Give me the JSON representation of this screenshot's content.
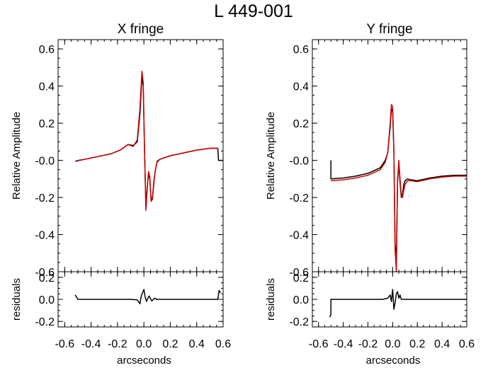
{
  "figure": {
    "title": "L 449-001"
  },
  "chart_data": [
    {
      "type": "line",
      "panel": "main",
      "title": "X fringe",
      "xlabel": "",
      "ylabel": "Relative Amplitude",
      "xlim": [
        -0.65,
        0.6
      ],
      "ylim": [
        -0.6,
        0.65
      ],
      "yticks": [
        0.6,
        0.4,
        0.2,
        0.0,
        -0.2,
        -0.4,
        -0.6
      ],
      "ytick_labels": [
        "0.6",
        "0.4",
        "0.2",
        "-0.0",
        "-0.2",
        "-0.4",
        "-0.6"
      ],
      "grid": false,
      "series": [
        {
          "color": "#000000",
          "x": [
            -0.52,
            -0.45,
            -0.35,
            -0.25,
            -0.18,
            -0.12,
            -0.08,
            -0.05,
            -0.03,
            -0.015,
            -0.005,
            0.005,
            0.015,
            0.025,
            0.035,
            0.045,
            0.055,
            0.065,
            0.075,
            0.085,
            0.1,
            0.12,
            0.2,
            0.3,
            0.4,
            0.5,
            0.56,
            0.565,
            0.6
          ],
          "y": [
            -0.005,
            0.005,
            0.02,
            0.035,
            0.055,
            0.085,
            0.08,
            0.1,
            0.25,
            0.45,
            0.4,
            0.05,
            -0.25,
            -0.15,
            -0.07,
            -0.1,
            -0.22,
            -0.2,
            -0.12,
            -0.06,
            -0.005,
            0.005,
            0.025,
            0.04,
            0.055,
            0.065,
            0.065,
            0.0,
            0.0
          ]
        },
        {
          "color": "#cc0000",
          "x": [
            -0.5,
            -0.45,
            -0.35,
            -0.25,
            -0.18,
            -0.12,
            -0.08,
            -0.05,
            -0.03,
            -0.015,
            -0.005,
            0.005,
            0.015,
            0.025,
            0.035,
            0.045,
            0.055,
            0.065,
            0.075,
            0.085,
            0.1,
            0.12,
            0.2,
            0.3,
            0.4,
            0.5,
            0.56
          ],
          "y": [
            0.0,
            0.005,
            0.02,
            0.035,
            0.055,
            0.085,
            0.075,
            0.11,
            0.28,
            0.48,
            0.42,
            0.05,
            -0.27,
            -0.16,
            -0.06,
            -0.09,
            -0.22,
            -0.21,
            -0.13,
            -0.06,
            -0.01,
            0.005,
            0.025,
            0.04,
            0.055,
            0.065,
            0.065
          ]
        }
      ]
    },
    {
      "type": "line",
      "panel": "residuals",
      "title": "",
      "xlabel": "arcseconds",
      "ylabel": "residuals",
      "xlim": [
        -0.65,
        0.6
      ],
      "ylim": [
        -0.25,
        0.25
      ],
      "xticks": [
        -0.6,
        -0.4,
        -0.2,
        0.0,
        0.2,
        0.4,
        0.6
      ],
      "xtick_labels": [
        "-0.6",
        "-0.4",
        "-0.2",
        "0.0",
        "0.2",
        "0.4",
        "0.6"
      ],
      "yticks": [
        0.2,
        0.0,
        -0.2
      ],
      "ytick_labels": [
        "0.2",
        "0.0",
        "-0.2"
      ],
      "grid": false,
      "series": [
        {
          "color": "#000000",
          "x": [
            -0.52,
            -0.5,
            -0.3,
            -0.1,
            -0.05,
            -0.03,
            -0.02,
            -0.01,
            0.0,
            0.01,
            0.02,
            0.03,
            0.04,
            0.05,
            0.06,
            0.08,
            0.1,
            0.3,
            0.5,
            0.56,
            0.57,
            0.58
          ],
          "y": [
            0.04,
            0.0,
            0.0,
            0.0,
            -0.005,
            -0.04,
            0.03,
            0.06,
            0.09,
            0.02,
            -0.02,
            0.01,
            0.03,
            0.005,
            -0.015,
            0.01,
            0.0,
            0.0,
            0.0,
            0.0,
            0.08,
            0.06
          ]
        }
      ]
    },
    {
      "type": "line",
      "panel": "main",
      "title": "Y fringe",
      "xlabel": "",
      "ylabel": "Relative Amplitude",
      "xlim": [
        -0.65,
        0.6
      ],
      "ylim": [
        -0.6,
        0.65
      ],
      "yticks": [
        0.6,
        0.4,
        0.2,
        0.0,
        -0.2,
        -0.4,
        -0.6
      ],
      "ytick_labels": [
        "0.6",
        "0.4",
        "0.2",
        "-0.0",
        "-0.2",
        "-0.4",
        "-0.6"
      ],
      "grid": false,
      "series": [
        {
          "color": "#000000",
          "x": [
            -0.5,
            -0.5,
            -0.4,
            -0.3,
            -0.2,
            -0.1,
            -0.06,
            -0.04,
            -0.02,
            -0.01,
            0.0,
            0.01,
            0.02,
            0.03,
            0.04,
            0.05,
            0.06,
            0.07,
            0.08,
            0.09,
            0.1,
            0.12,
            0.15,
            0.2,
            0.3,
            0.4,
            0.5,
            0.6
          ],
          "y": [
            0.0,
            -0.1,
            -0.095,
            -0.085,
            -0.07,
            -0.04,
            0.0,
            0.04,
            0.18,
            0.28,
            0.26,
            0.05,
            -0.45,
            -0.55,
            -0.1,
            -0.02,
            -0.12,
            -0.2,
            -0.18,
            -0.13,
            -0.11,
            -0.1,
            -0.105,
            -0.11,
            -0.095,
            -0.085,
            -0.08,
            -0.08
          ]
        },
        {
          "color": "#cc0000",
          "x": [
            -0.5,
            -0.4,
            -0.3,
            -0.2,
            -0.1,
            -0.06,
            -0.04,
            -0.02,
            -0.01,
            0.0,
            0.01,
            0.02,
            0.03,
            0.04,
            0.05,
            0.06,
            0.07,
            0.08,
            0.09,
            0.1,
            0.12,
            0.15,
            0.2,
            0.3,
            0.4,
            0.5,
            0.6
          ],
          "y": [
            -0.11,
            -0.105,
            -0.095,
            -0.08,
            -0.05,
            -0.01,
            0.04,
            0.2,
            0.3,
            0.29,
            0.05,
            -0.48,
            -0.6,
            -0.12,
            0.0,
            -0.1,
            -0.19,
            -0.2,
            -0.16,
            -0.13,
            -0.11,
            -0.11,
            -0.115,
            -0.1,
            -0.09,
            -0.085,
            -0.085
          ]
        }
      ]
    },
    {
      "type": "line",
      "panel": "residuals",
      "title": "",
      "xlabel": "arcseconds",
      "ylabel": "residuals",
      "xlim": [
        -0.65,
        0.6
      ],
      "ylim": [
        -0.25,
        0.25
      ],
      "xticks": [
        -0.6,
        -0.4,
        -0.2,
        0.0,
        0.2,
        0.4,
        0.6
      ],
      "xtick_labels": [
        "-0.6",
        "-0.4",
        "-0.2",
        "0.0",
        "0.2",
        "0.4",
        "0.6"
      ],
      "yticks": [
        0.2,
        0.0,
        -0.2
      ],
      "ytick_labels": [
        "0.2",
        "0.0",
        "-0.2"
      ],
      "grid": false,
      "series": [
        {
          "color": "#000000",
          "x": [
            -0.51,
            -0.5,
            -0.5,
            -0.4,
            -0.2,
            -0.08,
            -0.04,
            -0.02,
            -0.01,
            0.0,
            0.01,
            0.02,
            0.03,
            0.04,
            0.05,
            0.06,
            0.07,
            0.1,
            0.2,
            0.4,
            0.6
          ],
          "y": [
            -0.16,
            -0.14,
            0.0,
            0.0,
            0.0,
            0.0,
            0.01,
            0.04,
            -0.02,
            0.09,
            -0.09,
            -0.03,
            0.05,
            0.07,
            0.01,
            0.04,
            0.0,
            0.0,
            0.0,
            0.0,
            0.0
          ]
        }
      ]
    }
  ]
}
